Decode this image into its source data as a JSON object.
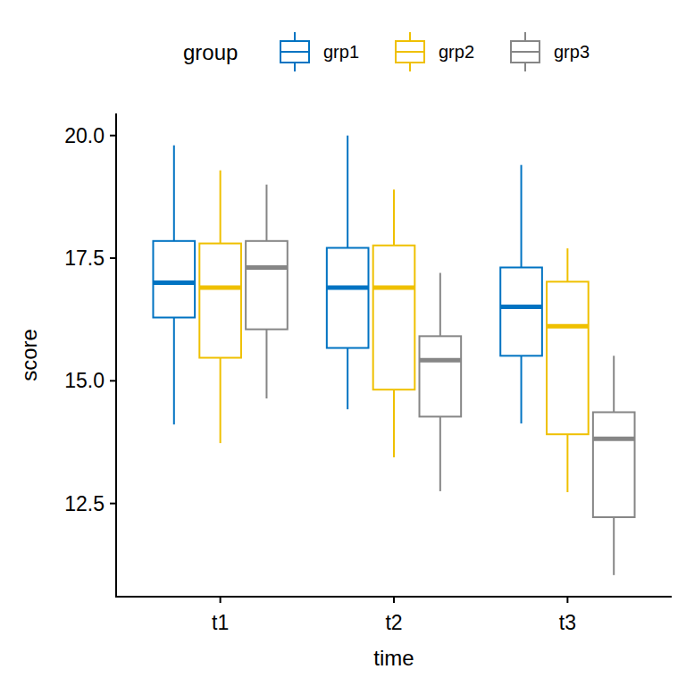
{
  "chart_data": {
    "type": "box",
    "x_label": "time",
    "y_label": "score",
    "legend_title": "group",
    "legend": "top",
    "grid": false,
    "categories": [
      "t1",
      "t2",
      "t3"
    ],
    "ylim": [
      10.6,
      20.45
    ],
    "yticks": [
      12.5,
      {
        "value": 15,
        "label": "15.0"
      },
      17.5,
      {
        "value": 20,
        "label": "20.0"
      }
    ],
    "series": [
      {
        "name": "grp1",
        "color": "#0073C2",
        "min": [
          14.11,
          14.42,
          14.13
        ],
        "q1": [
          16.29,
          15.67,
          15.51
        ],
        "median": [
          17.0,
          16.9,
          16.51
        ],
        "q3": [
          17.85,
          17.71,
          17.31
        ],
        "max": [
          19.8,
          20.0,
          19.4
        ]
      },
      {
        "name": "grp2",
        "color": "#EFC000",
        "min": [
          13.73,
          13.44,
          12.73
        ],
        "q1": [
          15.47,
          14.82,
          13.91
        ],
        "median": [
          16.9,
          16.9,
          16.11
        ],
        "q3": [
          17.8,
          17.76,
          17.02
        ],
        "max": [
          19.29,
          18.9,
          17.7
        ]
      },
      {
        "name": "grp3",
        "color": "#868686",
        "min": [
          14.64,
          12.75,
          11.04
        ],
        "q1": [
          16.05,
          14.27,
          12.22
        ],
        "median": [
          17.31,
          15.42,
          13.82
        ],
        "q3": [
          17.85,
          15.91,
          14.36
        ],
        "max": [
          19.0,
          17.2,
          15.51
        ]
      }
    ]
  }
}
